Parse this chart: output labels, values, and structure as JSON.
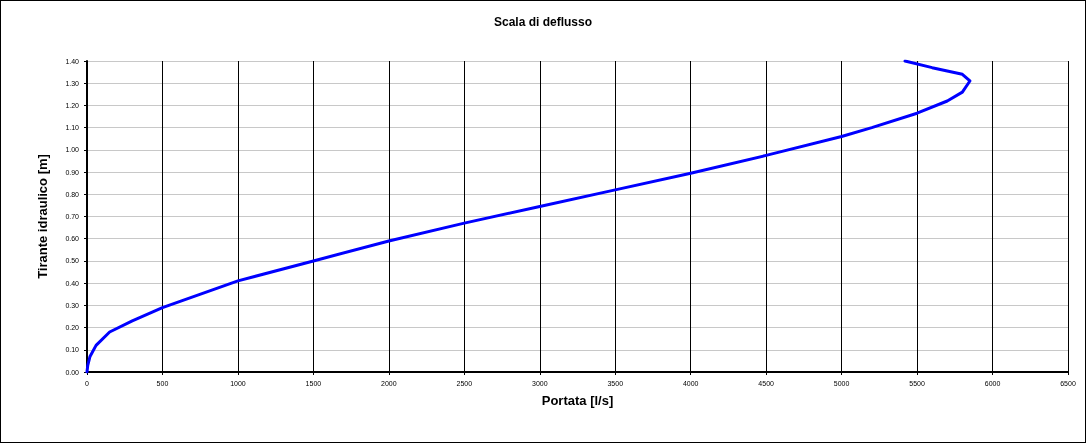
{
  "chart_data": {
    "type": "line",
    "title": "Scala di deflusso",
    "xlabel": "Portata [l/s]",
    "ylabel": "Tirante idraulico [m]",
    "xlim": [
      0,
      6500
    ],
    "xticks": [
      0,
      500,
      1000,
      1500,
      2000,
      2500,
      3000,
      3500,
      4000,
      4500,
      5000,
      5500,
      6000,
      6500
    ],
    "ylim": [
      0,
      1.4
    ],
    "yticks": [
      {
        "value": 0,
        "label": "0.00"
      },
      {
        "value": 0.1,
        "label": "0.10"
      },
      {
        "value": 0.2,
        "label": "0.20"
      },
      {
        "value": 0.3,
        "label": "0.30"
      },
      {
        "value": 0.4,
        "label": "0.40"
      },
      {
        "value": 0.5,
        "label": "0.50"
      },
      {
        "value": 0.6,
        "label": "0.60"
      },
      {
        "value": 0.7,
        "label": "0.70"
      },
      {
        "value": 0.8,
        "label": "0.80"
      },
      {
        "value": 0.9,
        "label": "0.90"
      },
      {
        "value": 1.0,
        "label": "1.00"
      },
      {
        "value": 1.1,
        "label": "1.10"
      },
      {
        "value": 1.2,
        "label": "1.20"
      },
      {
        "value": 1.3,
        "label": "1.30"
      },
      {
        "value": 1.4,
        "label": "1.40"
      }
    ],
    "grid": true,
    "marker": "none",
    "line_style": "solid",
    "series": [
      {
        "color": "#0000ff",
        "x": [
          0,
          5,
          20,
          60,
          150,
          300,
          500,
          1000,
          1500,
          2000,
          2500,
          3000,
          3500,
          4000,
          4500,
          5000,
          5200,
          5500,
          5700,
          5800,
          5850,
          5800,
          5600,
          5420
        ],
        "values": [
          0,
          0.03,
          0.07,
          0.12,
          0.18,
          0.23,
          0.29,
          0.41,
          0.5,
          0.59,
          0.67,
          0.745,
          0.82,
          0.895,
          0.975,
          1.06,
          1.1,
          1.165,
          1.22,
          1.26,
          1.31,
          1.34,
          1.37,
          1.4
        ]
      }
    ]
  }
}
